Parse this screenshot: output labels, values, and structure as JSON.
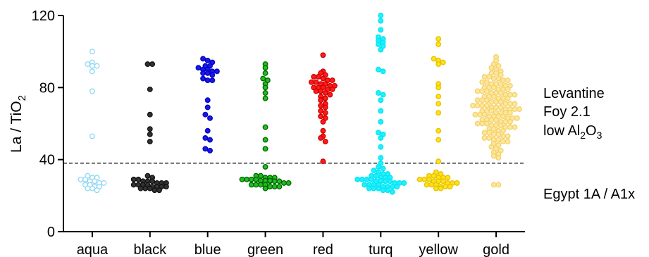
{
  "chart_data": {
    "type": "scatter",
    "ylabel": "La / TiO",
    "ylabel_sub": "2",
    "ylim": [
      0,
      120
    ],
    "yticks": [
      "0",
      "40",
      "80",
      "120"
    ],
    "categories": [
      "aqua",
      "black",
      "blue",
      "green",
      "red",
      "turq",
      "yellow",
      "gold"
    ],
    "reference_line": {
      "y": 38,
      "style": "dashed"
    },
    "annotations": {
      "upper": {
        "line1": "Levantine",
        "line2": "Foy 2.1",
        "line3_pre": "low Al",
        "line3_sub1": "2",
        "line3_mid": "O",
        "line3_sub2": "3"
      },
      "lower": "Egypt 1A / A1x"
    },
    "series": [
      {
        "category": "aqua",
        "color": "#8fd8f5",
        "fill": "#ffffff",
        "values": [
          100,
          94,
          93,
          92,
          92,
          89,
          78,
          53,
          31,
          30,
          30,
          29,
          29,
          28,
          28,
          27,
          27,
          26,
          26,
          25,
          25,
          24,
          24,
          23
        ]
      },
      {
        "category": "black",
        "color": "#111111",
        "fill": "#333333",
        "values": [
          93,
          93,
          79,
          65,
          57,
          54,
          50,
          31,
          30,
          29,
          29,
          28,
          28,
          28,
          27,
          27,
          27,
          26,
          26,
          26,
          26,
          25,
          25,
          25,
          25,
          24,
          24,
          24,
          23,
          23
        ]
      },
      {
        "category": "blue",
        "color": "#0000c8",
        "fill": "#1a1ae0",
        "values": [
          96,
          95,
          94,
          92,
          92,
          91,
          90,
          90,
          89,
          89,
          88,
          88,
          87,
          85,
          84,
          84,
          73,
          69,
          65,
          63,
          56,
          52,
          51,
          46,
          45
        ]
      },
      {
        "category": "green",
        "color": "#006400",
        "fill": "#1fbf1f",
        "values": [
          93,
          91,
          88,
          85,
          84,
          82,
          80,
          77,
          74,
          58,
          51,
          46,
          36,
          31,
          31,
          30,
          30,
          30,
          29,
          29,
          29,
          29,
          28,
          28,
          28,
          28,
          28,
          27,
          27,
          27,
          27,
          27,
          26,
          26,
          26,
          26,
          25,
          25,
          25,
          24
        ]
      },
      {
        "category": "red",
        "color": "#cc0000",
        "fill": "#ff1a1a",
        "values": [
          98,
          89,
          88,
          87,
          86,
          86,
          85,
          84,
          84,
          83,
          83,
          82,
          82,
          81,
          81,
          80,
          80,
          80,
          79,
          79,
          78,
          78,
          77,
          76,
          75,
          74,
          73,
          71,
          70,
          69,
          67,
          66,
          64,
          63,
          61,
          56,
          53,
          52,
          50,
          39
        ]
      },
      {
        "category": "turq",
        "color": "#00e5f0",
        "fill": "#22eeff",
        "values": [
          120,
          117,
          112,
          108,
          107,
          106,
          105,
          104,
          103,
          101,
          90,
          89,
          77,
          76,
          73,
          67,
          61,
          55,
          54,
          52,
          47,
          41,
          38,
          36,
          35,
          34,
          33,
          32,
          32,
          31,
          31,
          30,
          30,
          30,
          29,
          29,
          29,
          29,
          28,
          28,
          28,
          28,
          27,
          27,
          27,
          27,
          26,
          26,
          26,
          26,
          25,
          25,
          25,
          25,
          24,
          24,
          24,
          23,
          23,
          22
        ]
      },
      {
        "category": "yellow",
        "color": "#e6c200",
        "fill": "#ffe11a",
        "values": [
          107,
          104,
          96,
          95,
          94,
          93,
          82,
          80,
          75,
          71,
          66,
          56,
          51,
          39,
          33,
          32,
          31,
          31,
          30,
          30,
          30,
          29,
          29,
          29,
          28,
          28,
          28,
          27,
          27,
          27,
          26,
          26,
          26,
          25,
          25,
          25,
          24,
          24
        ]
      },
      {
        "category": "gold",
        "color": "#f2d26e",
        "fill": "#ffe79a",
        "values": [
          97,
          95,
          93,
          92,
          91,
          90,
          89,
          88,
          88,
          87,
          86,
          86,
          85,
          85,
          84,
          84,
          83,
          83,
          82,
          82,
          82,
          81,
          81,
          80,
          80,
          80,
          79,
          79,
          79,
          78,
          78,
          78,
          77,
          77,
          77,
          76,
          76,
          76,
          75,
          75,
          75,
          74,
          74,
          74,
          73,
          73,
          73,
          72,
          72,
          72,
          71,
          71,
          71,
          70,
          70,
          70,
          70,
          69,
          69,
          69,
          68,
          68,
          68,
          68,
          67,
          67,
          67,
          66,
          66,
          66,
          66,
          65,
          65,
          65,
          64,
          64,
          64,
          64,
          63,
          63,
          63,
          62,
          62,
          62,
          62,
          61,
          61,
          61,
          60,
          60,
          60,
          59,
          59,
          59,
          58,
          58,
          58,
          57,
          57,
          56,
          56,
          55,
          55,
          54,
          54,
          53,
          53,
          52,
          52,
          51,
          51,
          50,
          50,
          49,
          48,
          47,
          46,
          45,
          44,
          43,
          42,
          41,
          26,
          26
        ]
      }
    ]
  }
}
